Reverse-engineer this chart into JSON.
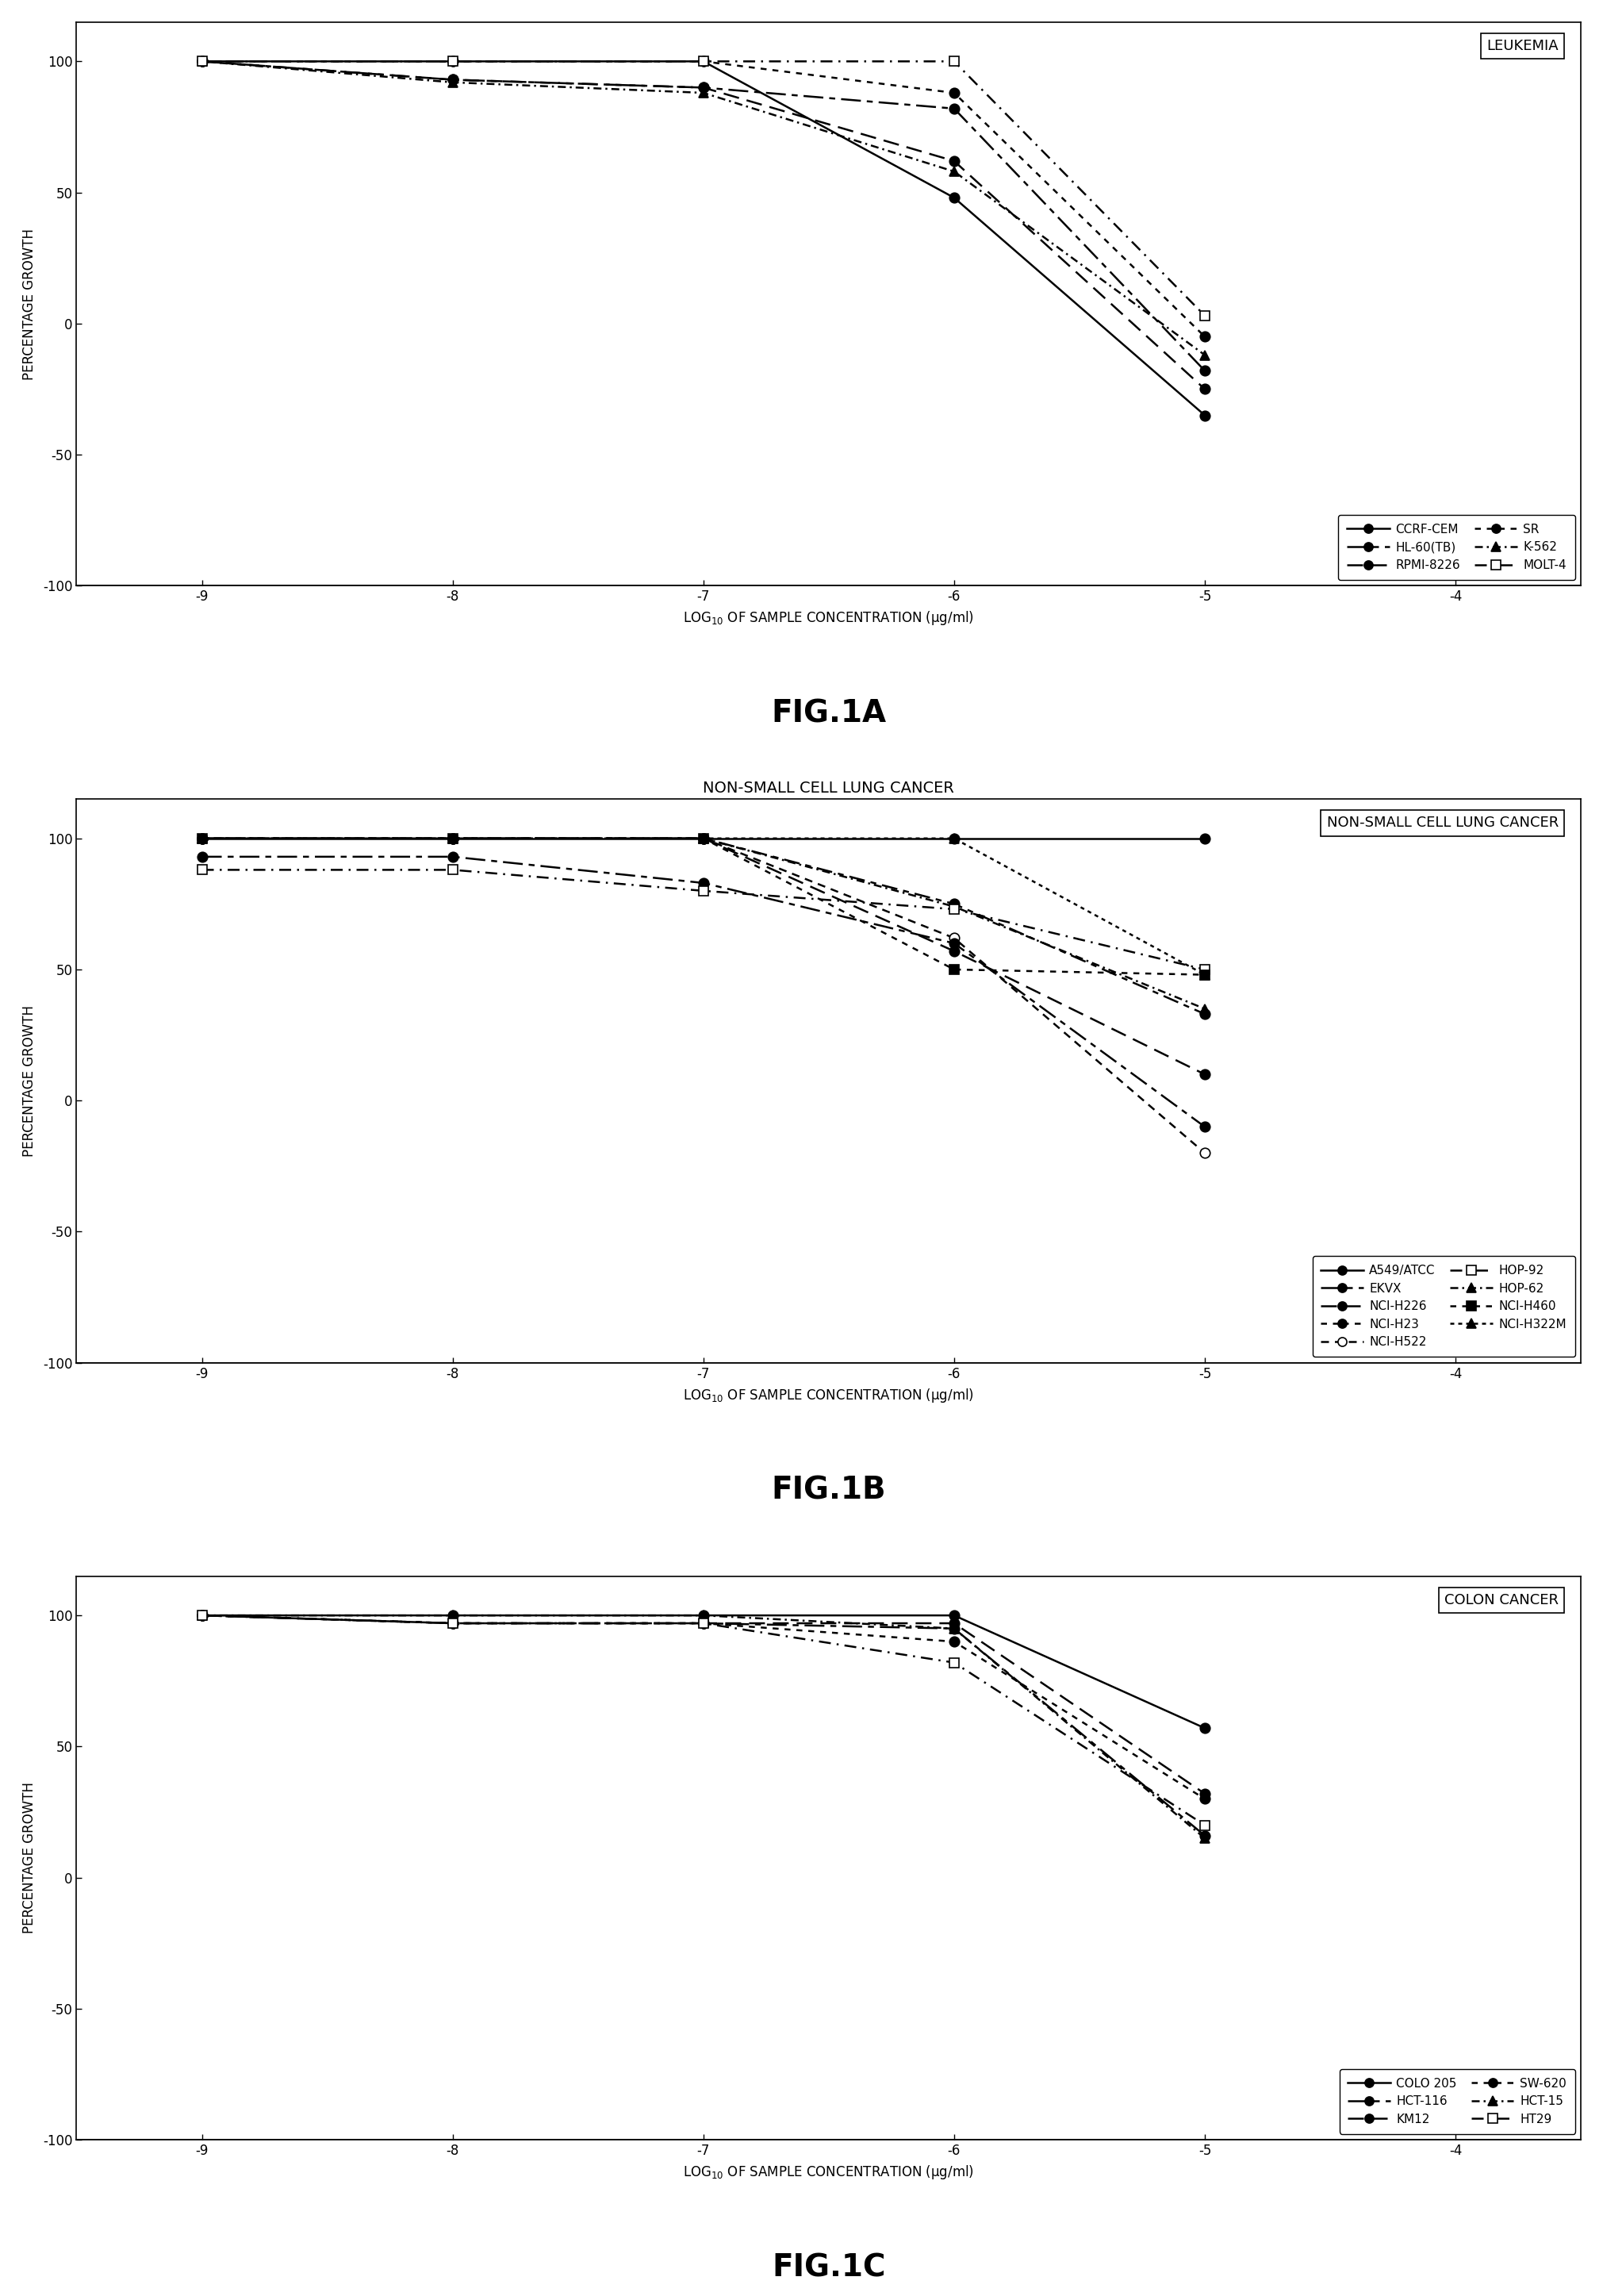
{
  "fig_width": 20.21,
  "fig_height": 28.94,
  "background_color": "white",
  "panels": [
    {
      "title": "LEUKEMIA",
      "axis_title": "",
      "figlabel": "FIG.1A",
      "xlabel": "LOG$_{10}$ OF SAMPLE CONCENTRATION (μg/ml)",
      "ylabel": "PERCENTAGE GROWTH",
      "xlim": [
        -9.5,
        -3.5
      ],
      "ylim": [
        -100,
        115
      ],
      "xticks": [
        -9,
        -8,
        -7,
        -6,
        -5,
        -4
      ],
      "xticklabels": [
        "-9",
        "-8",
        "-7",
        "-6",
        "-5",
        "-4"
      ],
      "yticks": [
        -100,
        -50,
        0,
        50,
        100
      ],
      "series": [
        {
          "label": "CCRF-CEM",
          "x": [
            -9,
            -8,
            -7,
            -6,
            -5
          ],
          "y": [
            100,
            100,
            100,
            48,
            -35
          ],
          "linestyle": "-",
          "marker": "o",
          "markersize": 9,
          "color": "black",
          "fillstyle": "full",
          "dashes": []
        },
        {
          "label": "RPMI-8226",
          "x": [
            -9,
            -8,
            -7,
            -6,
            -5
          ],
          "y": [
            100,
            93,
            90,
            62,
            -25
          ],
          "linestyle": "--",
          "marker": "o",
          "markersize": 9,
          "color": "black",
          "fillstyle": "full",
          "dashes": [
            8,
            4
          ]
        },
        {
          "label": "K-562",
          "x": [
            -9,
            -8,
            -7,
            -6,
            -5
          ],
          "y": [
            100,
            92,
            88,
            58,
            -12
          ],
          "linestyle": "--",
          "marker": "^",
          "markersize": 9,
          "color": "black",
          "fillstyle": "full",
          "dashes": [
            4,
            2,
            1,
            2
          ]
        },
        {
          "label": "HL-60(TB)",
          "x": [
            -9,
            -8,
            -7,
            -6,
            -5
          ],
          "y": [
            100,
            93,
            90,
            82,
            -18
          ],
          "linestyle": "--",
          "marker": "o",
          "markersize": 9,
          "color": "black",
          "fillstyle": "full",
          "dashes": [
            10,
            3,
            3,
            3
          ]
        },
        {
          "label": "SR",
          "x": [
            -9,
            -8,
            -7,
            -6,
            -5
          ],
          "y": [
            100,
            100,
            100,
            88,
            -5
          ],
          "linestyle": "--",
          "marker": "o",
          "markersize": 9,
          "color": "black",
          "fillstyle": "full",
          "dashes": [
            3,
            3
          ]
        },
        {
          "label": "MOLT-4",
          "x": [
            -9,
            -8,
            -7,
            -6,
            -5
          ],
          "y": [
            100,
            100,
            100,
            100,
            3
          ],
          "linestyle": "--",
          "marker": "s",
          "markersize": 9,
          "color": "black",
          "fillstyle": "none",
          "dashes": [
            6,
            3,
            1,
            3
          ]
        }
      ],
      "legend_cols": 2,
      "legend_entries": [
        {
          "label": "CCRF-CEM",
          "linestyle": "-",
          "marker": "o",
          "fillstyle": "full",
          "dashes": []
        },
        {
          "label": "HL-60(TB)",
          "linestyle": "--",
          "marker": "o",
          "fillstyle": "full",
          "dashes": [
            10,
            3,
            3,
            3
          ]
        },
        {
          "label": "RPMI-8226",
          "linestyle": "--",
          "marker": "o",
          "fillstyle": "full",
          "dashes": [
            8,
            4
          ]
        },
        {
          "label": "SR",
          "linestyle": "--",
          "marker": "o",
          "fillstyle": "full",
          "dashes": [
            3,
            3
          ]
        },
        {
          "label": "K-562",
          "linestyle": "--",
          "marker": "^",
          "fillstyle": "full",
          "dashes": [
            4,
            2,
            1,
            2
          ]
        },
        {
          "label": "MOLT-4",
          "linestyle": "--",
          "marker": "s",
          "fillstyle": "none",
          "dashes": [
            6,
            3,
            1,
            3
          ]
        }
      ]
    },
    {
      "title": "NON-SMALL CELL LUNG CANCER",
      "axis_title": "NON-SMALL CELL LUNG CANCER",
      "figlabel": "FIG.1B",
      "xlabel": "LOG$_{10}$ OF SAMPLE CONCENTRATION (μg/ml)",
      "ylabel": "PERCENTAGE GROWTH",
      "xlim": [
        -9.5,
        -3.5
      ],
      "ylim": [
        -100,
        115
      ],
      "xticks": [
        -9,
        -8,
        -7,
        -6,
        -5,
        -4
      ],
      "xticklabels": [
        "-9",
        "-8",
        "-7",
        "-6",
        "-5",
        "-4"
      ],
      "yticks": [
        -100,
        -50,
        0,
        50,
        100
      ],
      "series": [
        {
          "label": "A549/ATCC",
          "x": [
            -9,
            -8,
            -7,
            -6,
            -5
          ],
          "y": [
            100,
            100,
            100,
            100,
            100
          ],
          "linestyle": "-",
          "marker": "o",
          "markersize": 9,
          "color": "black",
          "fillstyle": "full",
          "dashes": []
        },
        {
          "label": "NCI-H226",
          "x": [
            -9,
            -8,
            -7,
            -6,
            -5
          ],
          "y": [
            100,
            100,
            100,
            57,
            10
          ],
          "linestyle": "--",
          "marker": "o",
          "markersize": 9,
          "color": "black",
          "fillstyle": "full",
          "dashes": [
            8,
            4
          ]
        },
        {
          "label": "NCI-H522",
          "x": [
            -9,
            -8,
            -7,
            -6,
            -5
          ],
          "y": [
            100,
            100,
            100,
            62,
            -20
          ],
          "linestyle": "--",
          "marker": "o",
          "markersize": 9,
          "color": "black",
          "fillstyle": "none",
          "dashes": [
            4,
            3
          ]
        },
        {
          "label": "HOP-62",
          "x": [
            -9,
            -8,
            -7,
            -6,
            -5
          ],
          "y": [
            100,
            100,
            100,
            74,
            35
          ],
          "linestyle": "--",
          "marker": "^",
          "markersize": 9,
          "color": "black",
          "fillstyle": "full",
          "dashes": [
            4,
            2,
            1,
            2
          ]
        },
        {
          "label": "NCI-H322M",
          "x": [
            -9,
            -8,
            -7,
            -6,
            -5
          ],
          "y": [
            100,
            100,
            100,
            100,
            48
          ],
          "linestyle": "--",
          "marker": "^",
          "markersize": 9,
          "color": "black",
          "fillstyle": "full",
          "dashes": [
            2,
            2
          ]
        },
        {
          "label": "EKVX",
          "x": [
            -9,
            -8,
            -7,
            -6,
            -5
          ],
          "y": [
            93,
            93,
            83,
            60,
            -10
          ],
          "linestyle": "--",
          "marker": "o",
          "markersize": 9,
          "color": "black",
          "fillstyle": "full",
          "dashes": [
            10,
            3,
            3,
            3
          ]
        },
        {
          "label": "NCI-H23",
          "x": [
            -9,
            -8,
            -7,
            -6,
            -5
          ],
          "y": [
            100,
            100,
            100,
            75,
            33
          ],
          "linestyle": "--",
          "marker": "o",
          "markersize": 9,
          "color": "black",
          "fillstyle": "full",
          "dashes": [
            3,
            3,
            8,
            3
          ]
        },
        {
          "label": "HOP-92",
          "x": [
            -9,
            -8,
            -7,
            -6,
            -5
          ],
          "y": [
            88,
            88,
            80,
            73,
            50
          ],
          "linestyle": "--",
          "marker": "s",
          "markersize": 9,
          "color": "black",
          "fillstyle": "none",
          "dashes": [
            6,
            3,
            1,
            3
          ]
        },
        {
          "label": "NCI-H460",
          "x": [
            -9,
            -8,
            -7,
            -6,
            -5
          ],
          "y": [
            100,
            100,
            100,
            50,
            48
          ],
          "linestyle": "--",
          "marker": "s",
          "markersize": 9,
          "color": "black",
          "fillstyle": "full",
          "dashes": [
            3,
            3
          ]
        }
      ],
      "legend_cols": 2,
      "legend_entries": [
        {
          "label": "A549/ATCC",
          "linestyle": "-",
          "marker": "o",
          "fillstyle": "full",
          "dashes": []
        },
        {
          "label": "EKVX",
          "linestyle": "--",
          "marker": "o",
          "fillstyle": "full",
          "dashes": [
            10,
            3,
            3,
            3
          ]
        },
        {
          "label": "NCI-H226",
          "linestyle": "--",
          "marker": "o",
          "fillstyle": "full",
          "dashes": [
            8,
            4
          ]
        },
        {
          "label": "NCI-H23",
          "linestyle": "--",
          "marker": "o",
          "fillstyle": "full",
          "dashes": [
            3,
            3,
            8,
            3
          ]
        },
        {
          "label": "NCI-H522",
          "linestyle": "--",
          "marker": "o",
          "fillstyle": "none",
          "dashes": [
            4,
            3
          ]
        },
        {
          "label": "HOP-92",
          "linestyle": "--",
          "marker": "s",
          "fillstyle": "none",
          "dashes": [
            6,
            3,
            1,
            3
          ]
        },
        {
          "label": "HOP-62",
          "linestyle": "--",
          "marker": "^",
          "fillstyle": "full",
          "dashes": [
            4,
            2,
            1,
            2
          ]
        },
        {
          "label": "NCI-H460",
          "linestyle": "--",
          "marker": "s",
          "fillstyle": "full",
          "dashes": [
            3,
            3
          ]
        },
        {
          "label": "NCI-H322M",
          "linestyle": "--",
          "marker": "^",
          "fillstyle": "full",
          "dashes": [
            2,
            2
          ]
        }
      ]
    },
    {
      "title": "COLON CANCER",
      "axis_title": "",
      "figlabel": "FIG.1C",
      "xlabel": "LOG$_{10}$ OF SAMPLE CONCENTRATION (μg/ml)",
      "ylabel": "PERCENTAGE GROWTH",
      "xlim": [
        -9.5,
        -3.5
      ],
      "ylim": [
        -100,
        115
      ],
      "xticks": [
        -9,
        -8,
        -7,
        -6,
        -5,
        -4
      ],
      "xticklabels": [
        "-9",
        "-8",
        "-7",
        "-6",
        "-5",
        "-4"
      ],
      "yticks": [
        -100,
        -50,
        0,
        50,
        100
      ],
      "series": [
        {
          "label": "COLO 205",
          "x": [
            -9,
            -8,
            -7,
            -6,
            -5
          ],
          "y": [
            100,
            100,
            100,
            100,
            57
          ],
          "linestyle": "-",
          "marker": "o",
          "markersize": 9,
          "color": "black",
          "fillstyle": "full",
          "dashes": []
        },
        {
          "label": "KM12",
          "x": [
            -9,
            -8,
            -7,
            -6,
            -5
          ],
          "y": [
            100,
            97,
            97,
            97,
            32
          ],
          "linestyle": "--",
          "marker": "o",
          "markersize": 9,
          "color": "black",
          "fillstyle": "full",
          "dashes": [
            8,
            4
          ]
        },
        {
          "label": "HCT-15",
          "x": [
            -9,
            -8,
            -7,
            -6,
            -5
          ],
          "y": [
            100,
            100,
            100,
            95,
            15
          ],
          "linestyle": "--",
          "marker": "^",
          "markersize": 9,
          "color": "black",
          "fillstyle": "full",
          "dashes": [
            4,
            2,
            1,
            2
          ]
        },
        {
          "label": "HCT-116",
          "x": [
            -9,
            -8,
            -7,
            -6,
            -5
          ],
          "y": [
            100,
            97,
            97,
            95,
            16
          ],
          "linestyle": "--",
          "marker": "o",
          "markersize": 9,
          "color": "black",
          "fillstyle": "full",
          "dashes": [
            10,
            3,
            3,
            3
          ]
        },
        {
          "label": "SW-620",
          "x": [
            -9,
            -8,
            -7,
            -6,
            -5
          ],
          "y": [
            100,
            97,
            97,
            90,
            30
          ],
          "linestyle": "--",
          "marker": "o",
          "markersize": 9,
          "color": "black",
          "fillstyle": "full",
          "dashes": [
            3,
            3
          ]
        },
        {
          "label": "HT29",
          "x": [
            -9,
            -8,
            -7,
            -6,
            -5
          ],
          "y": [
            100,
            97,
            97,
            82,
            20
          ],
          "linestyle": "--",
          "marker": "s",
          "markersize": 9,
          "color": "black",
          "fillstyle": "none",
          "dashes": [
            6,
            3,
            1,
            3
          ]
        }
      ],
      "legend_cols": 2,
      "legend_entries": [
        {
          "label": "COLO 205",
          "linestyle": "-",
          "marker": "o",
          "fillstyle": "full",
          "dashes": []
        },
        {
          "label": "HCT-116",
          "linestyle": "--",
          "marker": "o",
          "fillstyle": "full",
          "dashes": [
            10,
            3,
            3,
            3
          ]
        },
        {
          "label": "KM12",
          "linestyle": "--",
          "marker": "o",
          "fillstyle": "full",
          "dashes": [
            8,
            4
          ]
        },
        {
          "label": "SW-620",
          "linestyle": "--",
          "marker": "o",
          "fillstyle": "full",
          "dashes": [
            3,
            3
          ]
        },
        {
          "label": "HCT-15",
          "linestyle": "--",
          "marker": "^",
          "fillstyle": "full",
          "dashes": [
            4,
            2,
            1,
            2
          ]
        },
        {
          "label": "HT29",
          "linestyle": "--",
          "marker": "s",
          "fillstyle": "none",
          "dashes": [
            6,
            3,
            1,
            3
          ]
        }
      ]
    }
  ]
}
